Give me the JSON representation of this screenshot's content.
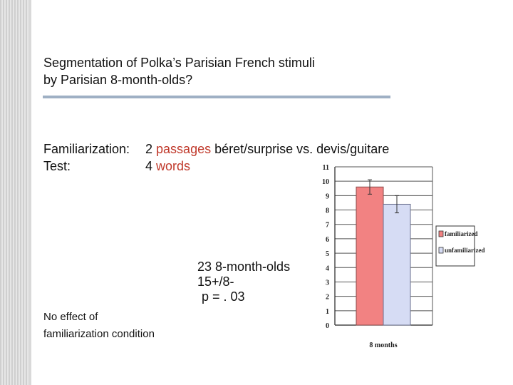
{
  "title": {
    "line1": "Segmentation of Polka’s Parisian French stimuli",
    "line2": "by Parisian 8-month-olds?"
  },
  "familiarization": {
    "label": "Familiarization:",
    "count": "2",
    "unit": "passages",
    "items": "béret/surprise vs. devis/guitare"
  },
  "test": {
    "label": "Test:",
    "count": "4",
    "unit": "words"
  },
  "stats": {
    "line1": "23 8-month-olds",
    "line2": "15+/8-",
    "line3": "p = . 03"
  },
  "note": {
    "line1": "No effect of",
    "line2": "familiarization condition"
  },
  "colors": {
    "accent_red": "#c0392b",
    "rule": "#9fb0c4",
    "bar_familiarized": "#f28282",
    "bar_unfamiliarized": "#d6dcf4"
  },
  "chart_data": {
    "type": "bar",
    "categories": [
      "8 months"
    ],
    "series": [
      {
        "name": "familiarized",
        "values": [
          9.6
        ],
        "error": [
          0.5
        ]
      },
      {
        "name": "unfamiliarized",
        "values": [
          8.4
        ],
        "error": [
          0.6
        ]
      }
    ],
    "yticks": [
      "0",
      "1",
      "2",
      "3",
      "4",
      "5",
      "6",
      "7",
      "8",
      "9",
      "10",
      "11"
    ],
    "ylim": [
      0,
      11
    ],
    "xlabel": "8 months",
    "grid": true,
    "legend": "right"
  }
}
